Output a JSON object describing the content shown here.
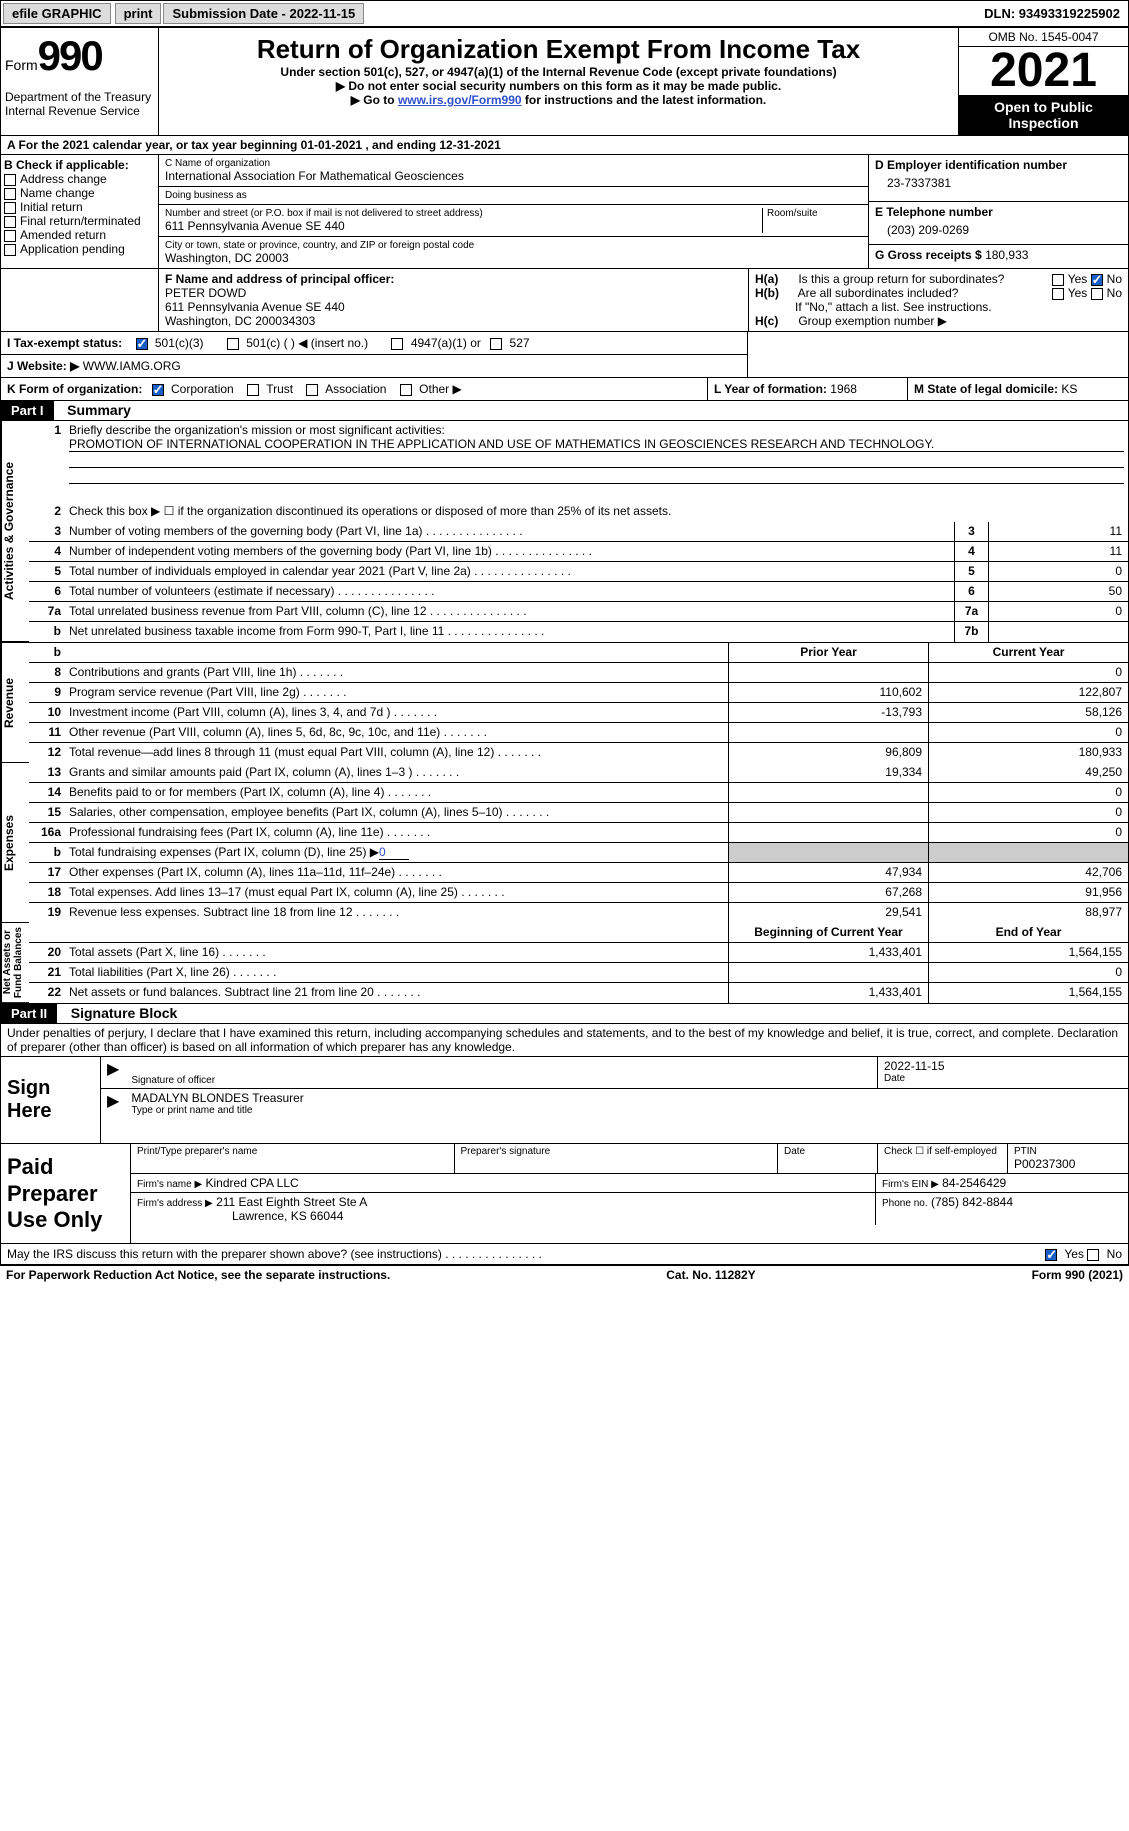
{
  "topbar": {
    "efile": "efile GRAPHIC",
    "print": "print",
    "submission_label": "Submission Date - 2022-11-15",
    "dln_label": "DLN: 93493319225902"
  },
  "header": {
    "form_label": "Form",
    "form_num": "990",
    "dept": "Department of the Treasury",
    "irs": "Internal Revenue Service",
    "title": "Return of Organization Exempt From Income Tax",
    "sub1": "Under section 501(c), 527, or 4947(a)(1) of the Internal Revenue Code (except private foundations)",
    "sub2": "▶ Do not enter social security numbers on this form as it may be made public.",
    "sub3_pre": "▶ Go to ",
    "sub3_link": "www.irs.gov/Form990",
    "sub3_post": " for instructions and the latest information.",
    "omb": "OMB No. 1545-0047",
    "year": "2021",
    "inspect": "Open to Public Inspection"
  },
  "rowA": "A   For the 2021 calendar year, or tax year beginning 01-01-2021    , and ending 12-31-2021",
  "boxB": {
    "label": "B Check if applicable:",
    "items": [
      "Address change",
      "Name change",
      "Initial return",
      "Final return/terminated",
      "Amended return",
      "Application pending"
    ]
  },
  "boxC": {
    "name_label": "C Name of organization",
    "name": "International Association For Mathematical Geosciences",
    "dba_label": "Doing business as",
    "addr_label": "Number and street (or P.O. box if mail is not delivered to street address)",
    "room_label": "Room/suite",
    "addr": "611 Pennsylvania Avenue SE 440",
    "city_label": "City or town, state or province, country, and ZIP or foreign postal code",
    "city": "Washington, DC  20003"
  },
  "boxD": {
    "label": "D Employer identification number",
    "value": "23-7337381"
  },
  "boxE": {
    "label": "E Telephone number",
    "value": "(203) 209-0269"
  },
  "boxG": {
    "label": "G Gross receipts $",
    "value": "180,933"
  },
  "boxF": {
    "label": "F  Name and address of principal officer:",
    "name": "PETER DOWD",
    "addr": "611 Pennsylvania Avenue SE 440",
    "city": "Washington, DC  200034303"
  },
  "boxH": {
    "a_label": "H(a)",
    "a_text": "Is this a group return for subordinates?",
    "a_yes": "Yes",
    "a_no": "No",
    "b_label": "H(b)",
    "b_text": "Are all subordinates included?",
    "b_yes": "Yes",
    "b_no": "No",
    "b_note": "If \"No,\" attach a list. See instructions.",
    "c_label": "H(c)",
    "c_text": "Group exemption number ▶"
  },
  "boxI": {
    "label": "I   Tax-exempt status:",
    "opts": [
      "501(c)(3)",
      "501(c) (  ) ◀ (insert no.)",
      "4947(a)(1) or",
      "527"
    ]
  },
  "boxJ": {
    "label": "J   Website: ▶",
    "value": "WWW.IAMG.ORG"
  },
  "boxK": {
    "label": "K Form of organization:",
    "opts": [
      "Corporation",
      "Trust",
      "Association",
      "Other ▶"
    ]
  },
  "boxL": {
    "label": "L Year of formation:",
    "value": "1968"
  },
  "boxM": {
    "label": "M State of legal domicile:",
    "value": "KS"
  },
  "part1": {
    "header": "Part I",
    "title": "Summary",
    "line1_label": "1",
    "line1_text": "Briefly describe the organization's mission or most significant activities:",
    "line1_value": "PROMOTION OF INTERNATIONAL COOPERATION IN THE APPLICATION AND USE OF MATHEMATICS IN GEOSCIENCES RESEARCH AND TECHNOLOGY.",
    "line2": {
      "n": "2",
      "t": "Check this box ▶ ☐  if the organization discontinued its operations or disposed of more than 25% of its net assets."
    },
    "lines_ag": [
      {
        "n": "3",
        "t": "Number of voting members of the governing body (Part VI, line 1a)",
        "box": "3",
        "v": "11"
      },
      {
        "n": "4",
        "t": "Number of independent voting members of the governing body (Part VI, line 1b)",
        "box": "4",
        "v": "11"
      },
      {
        "n": "5",
        "t": "Total number of individuals employed in calendar year 2021 (Part V, line 2a)",
        "box": "5",
        "v": "0"
      },
      {
        "n": "6",
        "t": "Total number of volunteers (estimate if necessary)",
        "box": "6",
        "v": "50"
      },
      {
        "n": "7a",
        "t": "Total unrelated business revenue from Part VIII, column (C), line 12",
        "box": "7a",
        "v": "0"
      },
      {
        "n": "b",
        "t": "Net unrelated business taxable income from Form 990-T, Part I, line 11",
        "box": "7b",
        "v": ""
      }
    ],
    "year_headers": {
      "prior": "Prior Year",
      "current": "Current Year"
    },
    "revenue_label": "Revenue",
    "revenue": [
      {
        "n": "8",
        "t": "Contributions and grants (Part VIII, line 1h)",
        "p": "",
        "c": "0"
      },
      {
        "n": "9",
        "t": "Program service revenue (Part VIII, line 2g)",
        "p": "110,602",
        "c": "122,807"
      },
      {
        "n": "10",
        "t": "Investment income (Part VIII, column (A), lines 3, 4, and 7d )",
        "p": "-13,793",
        "c": "58,126"
      },
      {
        "n": "11",
        "t": "Other revenue (Part VIII, column (A), lines 5, 6d, 8c, 9c, 10c, and 11e)",
        "p": "",
        "c": "0"
      },
      {
        "n": "12",
        "t": "Total revenue—add lines 8 through 11 (must equal Part VIII, column (A), line 12)",
        "p": "96,809",
        "c": "180,933"
      }
    ],
    "expenses_label": "Expenses",
    "expenses": [
      {
        "n": "13",
        "t": "Grants and similar amounts paid (Part IX, column (A), lines 1–3 )",
        "p": "19,334",
        "c": "49,250"
      },
      {
        "n": "14",
        "t": "Benefits paid to or for members (Part IX, column (A), line 4)",
        "p": "",
        "c": "0"
      },
      {
        "n": "15",
        "t": "Salaries, other compensation, employee benefits (Part IX, column (A), lines 5–10)",
        "p": "",
        "c": "0"
      },
      {
        "n": "16a",
        "t": "Professional fundraising fees (Part IX, column (A), line 11e)",
        "p": "",
        "c": "0"
      },
      {
        "n": "b",
        "t": "Total fundraising expenses (Part IX, column (D), line 25) ▶",
        "fund_val": "0",
        "shaded": true
      },
      {
        "n": "17",
        "t": "Other expenses (Part IX, column (A), lines 11a–11d, 11f–24e)",
        "p": "47,934",
        "c": "42,706"
      },
      {
        "n": "18",
        "t": "Total expenses. Add lines 13–17 (must equal Part IX, column (A), line 25)",
        "p": "67,268",
        "c": "91,956"
      },
      {
        "n": "19",
        "t": "Revenue less expenses. Subtract line 18 from line 12",
        "p": "29,541",
        "c": "88,977"
      }
    ],
    "net_label": "Net Assets or Fund Balances",
    "net_headers": {
      "begin": "Beginning of Current Year",
      "end": "End of Year"
    },
    "net": [
      {
        "n": "20",
        "t": "Total assets (Part X, line 16)",
        "p": "1,433,401",
        "c": "1,564,155"
      },
      {
        "n": "21",
        "t": "Total liabilities (Part X, line 26)",
        "p": "",
        "c": "0"
      },
      {
        "n": "22",
        "t": "Net assets or fund balances. Subtract line 21 from line 20",
        "p": "1,433,401",
        "c": "1,564,155"
      }
    ]
  },
  "part2": {
    "header": "Part II",
    "title": "Signature Block",
    "decl": "Under penalties of perjury, I declare that I have examined this return, including accompanying schedules and statements, and to the best of my knowledge and belief, it is true, correct, and complete. Declaration of preparer (other than officer) is based on all information of which preparer has any knowledge.",
    "sign_here": "Sign Here",
    "sig_officer": "Signature of officer",
    "sig_date": "2022-11-15",
    "date_label": "Date",
    "officer_name": "MADALYN BLONDES  Treasurer",
    "officer_type": "Type or print name and title",
    "paid_label": "Paid Preparer Use Only",
    "prep_name_label": "Print/Type preparer's name",
    "prep_sig_label": "Preparer's signature",
    "check_self": "Check ☐ if self-employed",
    "ptin_label": "PTIN",
    "ptin": "P00237300",
    "firm_name_label": "Firm's name    ▶",
    "firm_name": "Kindred CPA LLC",
    "firm_ein_label": "Firm's EIN ▶",
    "firm_ein": "84-2546429",
    "firm_addr_label": "Firm's address ▶",
    "firm_addr": "211 East Eighth Street Ste A",
    "firm_city": "Lawrence, KS  66044",
    "phone_label": "Phone no.",
    "phone": "(785) 842-8844",
    "discuss": "May the IRS discuss this return with the preparer shown above? (see instructions)",
    "yes": "Yes",
    "no": "No"
  },
  "footer": {
    "pra": "For Paperwork Reduction Act Notice, see the separate instructions.",
    "cat": "Cat. No. 11282Y",
    "form": "Form 990 (2021)"
  },
  "colors": {
    "link": "#3050cc",
    "check": "#1a5ec7",
    "shade": "#cccccc"
  }
}
